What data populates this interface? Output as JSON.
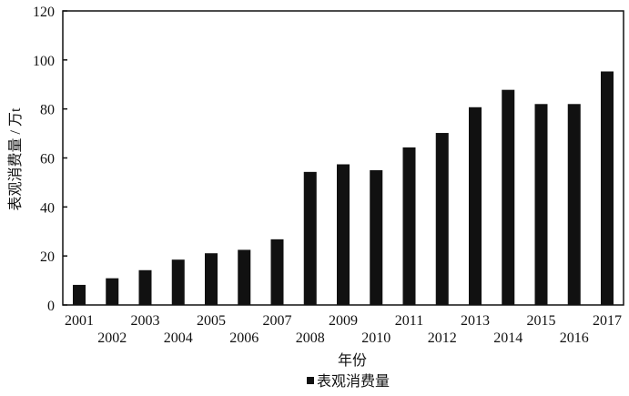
{
  "chart_data": {
    "type": "bar",
    "title": "",
    "xlabel": "年份",
    "ylabel": "表观消费量 / 万t",
    "ylim": [
      0,
      120
    ],
    "yticks": [
      0,
      20,
      40,
      60,
      80,
      100,
      120
    ],
    "grid": false,
    "legend_position": "bottom",
    "bar_color": "#111111",
    "categories": [
      "2001",
      "2002",
      "2003",
      "2004",
      "2005",
      "2006",
      "2007",
      "2008",
      "2009",
      "2010",
      "2011",
      "2012",
      "2013",
      "2014",
      "2015",
      "2016",
      "2017"
    ],
    "series": [
      {
        "name": "表观消费量",
        "values": [
          8.2,
          10.9,
          14.2,
          18.5,
          21.1,
          22.5,
          26.8,
          54.3,
          57.4,
          55.0,
          64.3,
          70.2,
          80.7,
          87.8,
          82.0,
          82.0,
          95.3
        ]
      }
    ]
  }
}
